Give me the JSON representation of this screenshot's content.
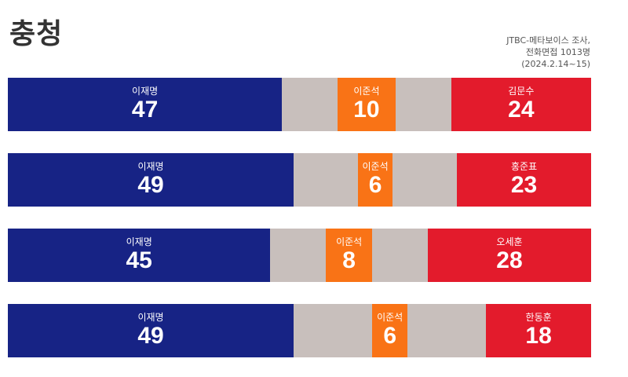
{
  "title": "충청",
  "source": [
    "JTBC-메타보이스 조사,",
    "전화면접 1013명",
    "(2024.2.14~15)"
  ],
  "colors": {
    "democratic": "#172385",
    "reform": "#f97316",
    "ppp": "#e31b2c",
    "other": "#c8bfbc"
  },
  "chart_data": {
    "type": "bar",
    "orientation": "horizontal-stacked",
    "title": "충청",
    "rows": [
      {
        "left": {
          "name": "이재명",
          "value": 47
        },
        "middle": {
          "name": "이준석",
          "value": 10
        },
        "right": {
          "name": "김문수",
          "value": 24
        }
      },
      {
        "left": {
          "name": "이재명",
          "value": 49
        },
        "middle": {
          "name": "이준석",
          "value": 6
        },
        "right": {
          "name": "홍준표",
          "value": 23
        }
      },
      {
        "left": {
          "name": "이재명",
          "value": 45
        },
        "middle": {
          "name": "이준석",
          "value": 8
        },
        "right": {
          "name": "오세훈",
          "value": 28
        }
      },
      {
        "left": {
          "name": "이재명",
          "value": 49
        },
        "middle": {
          "name": "이준석",
          "value": 6
        },
        "right": {
          "name": "한동훈",
          "value": 18
        }
      }
    ],
    "xlim": [
      0,
      100
    ]
  }
}
